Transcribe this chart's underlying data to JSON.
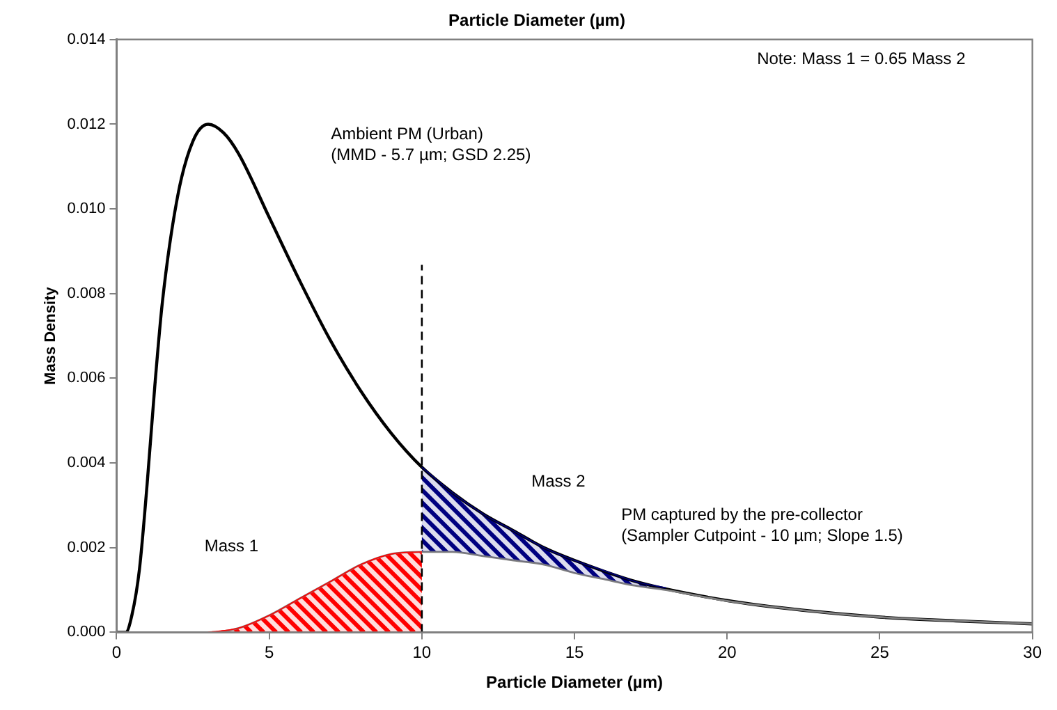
{
  "chart_data": {
    "type": "line",
    "title": "Particle Diameter (µm)",
    "xlabel": "Particle Diameter (µm)",
    "ylabel": "Mass Density",
    "xlim": [
      0,
      30
    ],
    "xticks": [
      0,
      5,
      10,
      15,
      20,
      25,
      30
    ],
    "ylim": [
      0,
      0.014
    ],
    "yticks": [
      {
        "value": 0,
        "label": "0.000"
      },
      {
        "value": 0.002,
        "label": "0.002"
      },
      {
        "value": 0.004,
        "label": "0.004"
      },
      {
        "value": 0.006,
        "label": "0.006"
      },
      {
        "value": 0.008,
        "label": "0.008"
      },
      {
        "value": 0.01,
        "label": "0.010"
      },
      {
        "value": 0.012,
        "label": "0.012"
      },
      {
        "value": 0.014,
        "label": "0.014"
      }
    ],
    "grid": false,
    "legend": false,
    "marker": "none",
    "series": [
      {
        "type": "area",
        "color": "#ff0000",
        "x": [
          3,
          4,
          5,
          6,
          7,
          8,
          9,
          10
        ],
        "values": [
          0,
          0.0001,
          0.0004,
          0.0008,
          0.0012,
          0.0016,
          0.00185,
          0.0019
        ]
      },
      {
        "type": "area",
        "color": "#000080",
        "x": [
          10,
          11,
          12,
          13,
          14,
          15,
          16,
          17,
          18
        ],
        "values": [
          0.0039,
          0.0033,
          0.0028,
          0.0024,
          0.002,
          0.0017,
          0.00145,
          0.0012,
          0.00105
        ]
      },
      {
        "type": "line",
        "color": "#808080",
        "line_style": "solid",
        "x": [
          0,
          3,
          4,
          5,
          6,
          7,
          8,
          9,
          10,
          11,
          12,
          13,
          14,
          15,
          16,
          17,
          18,
          20,
          22.5,
          25,
          27.5,
          30
        ],
        "values": [
          0,
          0,
          0.0001,
          0.0004,
          0.0008,
          0.0012,
          0.0016,
          0.00185,
          0.0019,
          0.0019,
          0.0018,
          0.0017,
          0.0016,
          0.0014,
          0.00125,
          0.0011,
          0.001,
          0.00074,
          0.00052,
          0.00036,
          0.00027,
          0.0002
        ]
      },
      {
        "type": "line",
        "color": "#000000",
        "line_style": "solid",
        "x": [
          0,
          0.3,
          0.5,
          0.75,
          1,
          1.25,
          1.5,
          2,
          2.5,
          3,
          3.5,
          4,
          5,
          6,
          7,
          8,
          9,
          10,
          11,
          12,
          13,
          14,
          15,
          17,
          20,
          22.5,
          25,
          27.5,
          30
        ],
        "values": [
          0,
          0,
          0.0004,
          0.0015,
          0.0035,
          0.0058,
          0.0078,
          0.0103,
          0.0116,
          0.012,
          0.0118,
          0.0113,
          0.0098,
          0.0083,
          0.0069,
          0.0057,
          0.0047,
          0.0039,
          0.0033,
          0.0028,
          0.0024,
          0.002,
          0.0017,
          0.0012,
          0.00075,
          0.00052,
          0.00036,
          0.00027,
          0.0002
        ]
      }
    ],
    "ref_lines": [
      {
        "axis": "x",
        "value": 10,
        "color": "#000000",
        "line_style": "dashed"
      }
    ],
    "annotations": [
      "Ambient PM (Urban)\n(MMD - 5.7 µm; GSD 2.25)",
      "Note: Mass 1 = 0.65 Mass 2",
      "Mass 1",
      "Mass 2",
      "PM captured by the pre-collector\n(Sampler Cutpoint - 10 µm; Slope 1.5)"
    ]
  }
}
